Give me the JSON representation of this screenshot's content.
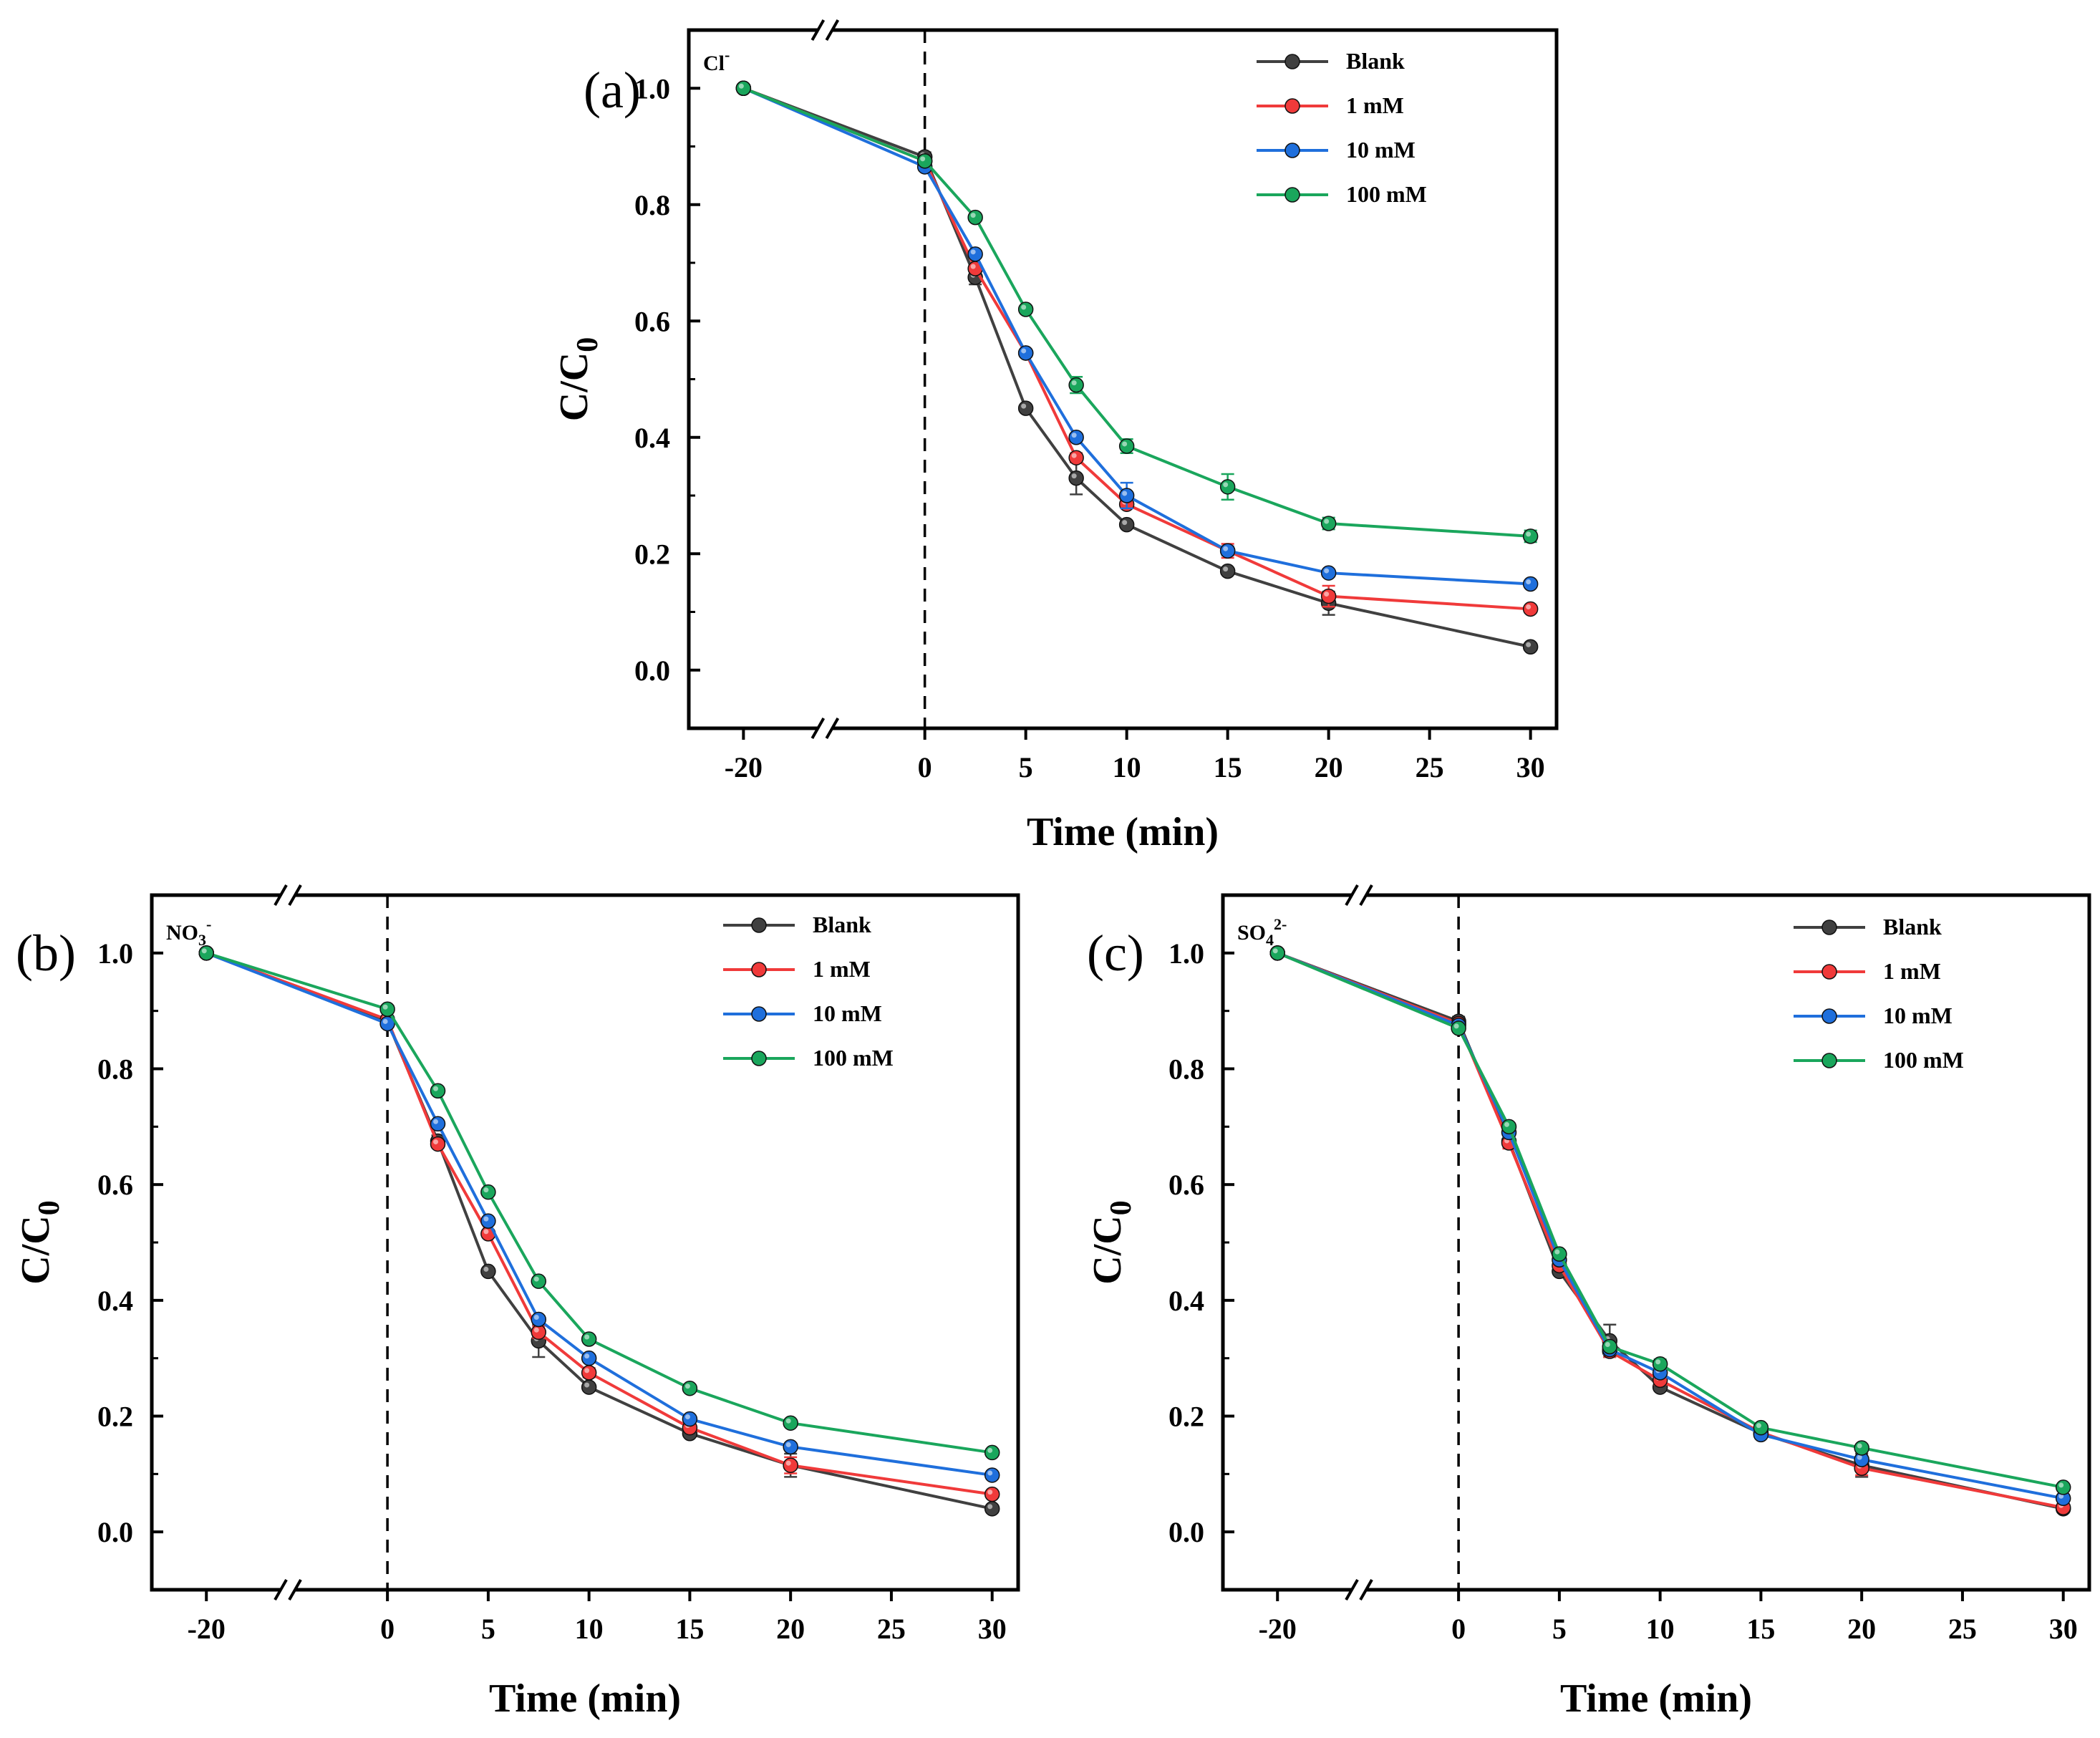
{
  "chart_data": [
    {
      "type": "line",
      "panel": "(a)",
      "ion": {
        "base": "Cl",
        "sub": "",
        "sup": "-"
      },
      "xlabel": "Time (min)",
      "ylabel": "C/C",
      "ylabel_sub": "0",
      "xlim": [
        -20,
        30
      ],
      "axis_break": "between -20 and 0",
      "ylim": [
        -0.1,
        1.1
      ],
      "xticks": [
        -20,
        0,
        5,
        10,
        15,
        20,
        25,
        30
      ],
      "xtick_labels": [
        "-20",
        "0",
        "5",
        "10",
        "15",
        "20",
        "25",
        "30"
      ],
      "yticks": [
        0.0,
        0.2,
        0.4,
        0.6,
        0.8,
        1.0
      ],
      "ytick_labels": [
        "0.0",
        "0.2",
        "0.4",
        "0.6",
        "0.8",
        "1.0"
      ],
      "legend_position": "top-right",
      "series": [
        {
          "name": "Blank",
          "color": "#404040",
          "x": [
            -20,
            0,
            2.5,
            5,
            7.5,
            10,
            15,
            20,
            30
          ],
          "y": [
            1.0,
            0.882,
            0.675,
            0.45,
            0.33,
            0.25,
            0.17,
            0.115,
            0.04
          ],
          "err": [
            0,
            0.008,
            0.012,
            0,
            0.028,
            0,
            0.005,
            0.02,
            0
          ]
        },
        {
          "name": "1 mM",
          "color": "#f03a3a",
          "x": [
            -20,
            0,
            2.5,
            5,
            7.5,
            10,
            15,
            20,
            30
          ],
          "y": [
            1.0,
            0.875,
            0.69,
            0.545,
            0.365,
            0.285,
            0.205,
            0.127,
            0.105
          ],
          "err": [
            0,
            0.005,
            0.006,
            0.005,
            0.008,
            0.006,
            0.012,
            0.018,
            0.004
          ]
        },
        {
          "name": "10 mM",
          "color": "#1f6fdc",
          "x": [
            -20,
            0,
            2.5,
            5,
            7.5,
            10,
            15,
            20,
            30
          ],
          "y": [
            1.0,
            0.865,
            0.715,
            0.545,
            0.4,
            0.3,
            0.205,
            0.167,
            0.148
          ],
          "err": [
            0,
            0.005,
            0.005,
            0.005,
            0.006,
            0.022,
            0.008,
            0.006,
            0.004
          ]
        },
        {
          "name": "100 mM",
          "color": "#1aa65c",
          "x": [
            -20,
            0,
            2.5,
            5,
            7.5,
            10,
            15,
            20,
            30
          ],
          "y": [
            1.0,
            0.875,
            0.778,
            0.62,
            0.49,
            0.385,
            0.315,
            0.252,
            0.23
          ],
          "err": [
            0,
            0.006,
            0.005,
            0.006,
            0.014,
            0.012,
            0.022,
            0.01,
            0.01
          ]
        }
      ]
    },
    {
      "type": "line",
      "panel": "(b)",
      "ion": {
        "base": "NO",
        "sub": "3",
        "sup": "-"
      },
      "xlabel": "Time (min)",
      "ylabel": "C/C",
      "ylabel_sub": "0",
      "xlim": [
        -20,
        30
      ],
      "axis_break": "between -20 and 0",
      "ylim": [
        -0.1,
        1.1
      ],
      "xticks": [
        -20,
        0,
        5,
        10,
        15,
        20,
        25,
        30
      ],
      "xtick_labels": [
        "-20",
        "0",
        "5",
        "10",
        "15",
        "20",
        "25",
        "30"
      ],
      "yticks": [
        0.0,
        0.2,
        0.4,
        0.6,
        0.8,
        1.0
      ],
      "ytick_labels": [
        "0.0",
        "0.2",
        "0.4",
        "0.6",
        "0.8",
        "1.0"
      ],
      "legend_position": "top-right",
      "series": [
        {
          "name": "Blank",
          "color": "#404040",
          "x": [
            -20,
            0,
            2.5,
            5,
            7.5,
            10,
            15,
            20,
            30
          ],
          "y": [
            1.0,
            0.882,
            0.675,
            0.45,
            0.33,
            0.25,
            0.17,
            0.115,
            0.04
          ],
          "err": [
            0,
            0.008,
            0.01,
            0,
            0.028,
            0,
            0.005,
            0.02,
            0
          ]
        },
        {
          "name": "1 mM",
          "color": "#f03a3a",
          "x": [
            -20,
            0,
            2.5,
            5,
            7.5,
            10,
            15,
            20,
            30
          ],
          "y": [
            1.0,
            0.885,
            0.67,
            0.515,
            0.345,
            0.275,
            0.18,
            0.115,
            0.065
          ],
          "err": [
            0,
            0.006,
            0.006,
            0.006,
            0.01,
            0.008,
            0.006,
            0.014,
            0.004
          ]
        },
        {
          "name": "10 mM",
          "color": "#1f6fdc",
          "x": [
            -20,
            0,
            2.5,
            5,
            7.5,
            10,
            15,
            20,
            30
          ],
          "y": [
            1.0,
            0.878,
            0.705,
            0.537,
            0.367,
            0.3,
            0.195,
            0.147,
            0.098
          ],
          "err": [
            0,
            0.006,
            0.005,
            0.006,
            0.006,
            0.006,
            0.006,
            0.005,
            0.004
          ]
        },
        {
          "name": "100 mM",
          "color": "#1aa65c",
          "x": [
            -20,
            0,
            2.5,
            5,
            7.5,
            10,
            15,
            20,
            30
          ],
          "y": [
            1.0,
            0.903,
            0.762,
            0.587,
            0.433,
            0.333,
            0.248,
            0.188,
            0.137
          ],
          "err": [
            0,
            0.006,
            0.005,
            0.005,
            0.006,
            0.005,
            0.005,
            0.005,
            0.004
          ]
        }
      ]
    },
    {
      "type": "line",
      "panel": "(c)",
      "ion": {
        "base": "SO",
        "sub": "4",
        "sup": "2-"
      },
      "xlabel": "Time (min)",
      "ylabel": "C/C",
      "ylabel_sub": "0",
      "xlim": [
        -20,
        30
      ],
      "axis_break": "between -20 and 0",
      "ylim": [
        -0.1,
        1.1
      ],
      "xticks": [
        -20,
        0,
        5,
        10,
        15,
        20,
        25,
        30
      ],
      "xtick_labels": [
        "-20",
        "0",
        "5",
        "10",
        "15",
        "20",
        "25",
        "30"
      ],
      "yticks": [
        0.0,
        0.2,
        0.4,
        0.6,
        0.8,
        1.0
      ],
      "ytick_labels": [
        "0.0",
        "0.2",
        "0.4",
        "0.6",
        "0.8",
        "1.0"
      ],
      "legend_position": "top-right",
      "series": [
        {
          "name": "Blank",
          "color": "#404040",
          "x": [
            -20,
            0,
            2.5,
            5,
            7.5,
            10,
            15,
            20,
            30
          ],
          "y": [
            1.0,
            0.882,
            0.675,
            0.45,
            0.33,
            0.25,
            0.17,
            0.115,
            0.04
          ],
          "err": [
            0,
            0.008,
            0.01,
            0,
            0.028,
            0,
            0.005,
            0.02,
            0
          ]
        },
        {
          "name": "1 mM",
          "color": "#f03a3a",
          "x": [
            -20,
            0,
            2.5,
            5,
            7.5,
            10,
            15,
            20,
            30
          ],
          "y": [
            1.0,
            0.878,
            0.672,
            0.46,
            0.312,
            0.262,
            0.172,
            0.11,
            0.042
          ],
          "err": [
            0,
            0.006,
            0.01,
            0.006,
            0.01,
            0.008,
            0.006,
            0.012,
            0.004
          ]
        },
        {
          "name": "10 mM",
          "color": "#1f6fdc",
          "x": [
            -20,
            0,
            2.5,
            5,
            7.5,
            10,
            15,
            20,
            30
          ],
          "y": [
            1.0,
            0.875,
            0.69,
            0.47,
            0.315,
            0.275,
            0.168,
            0.125,
            0.058
          ],
          "err": [
            0,
            0.006,
            0.008,
            0.006,
            0.008,
            0.008,
            0.006,
            0.006,
            0.004
          ]
        },
        {
          "name": "100 mM",
          "color": "#1aa65c",
          "x": [
            -20,
            0,
            2.5,
            5,
            7.5,
            10,
            15,
            20,
            30
          ],
          "y": [
            1.0,
            0.87,
            0.7,
            0.48,
            0.32,
            0.29,
            0.18,
            0.145,
            0.077
          ],
          "err": [
            0,
            0.006,
            0.006,
            0.006,
            0.006,
            0.008,
            0.006,
            0.006,
            0.004
          ]
        }
      ]
    }
  ]
}
